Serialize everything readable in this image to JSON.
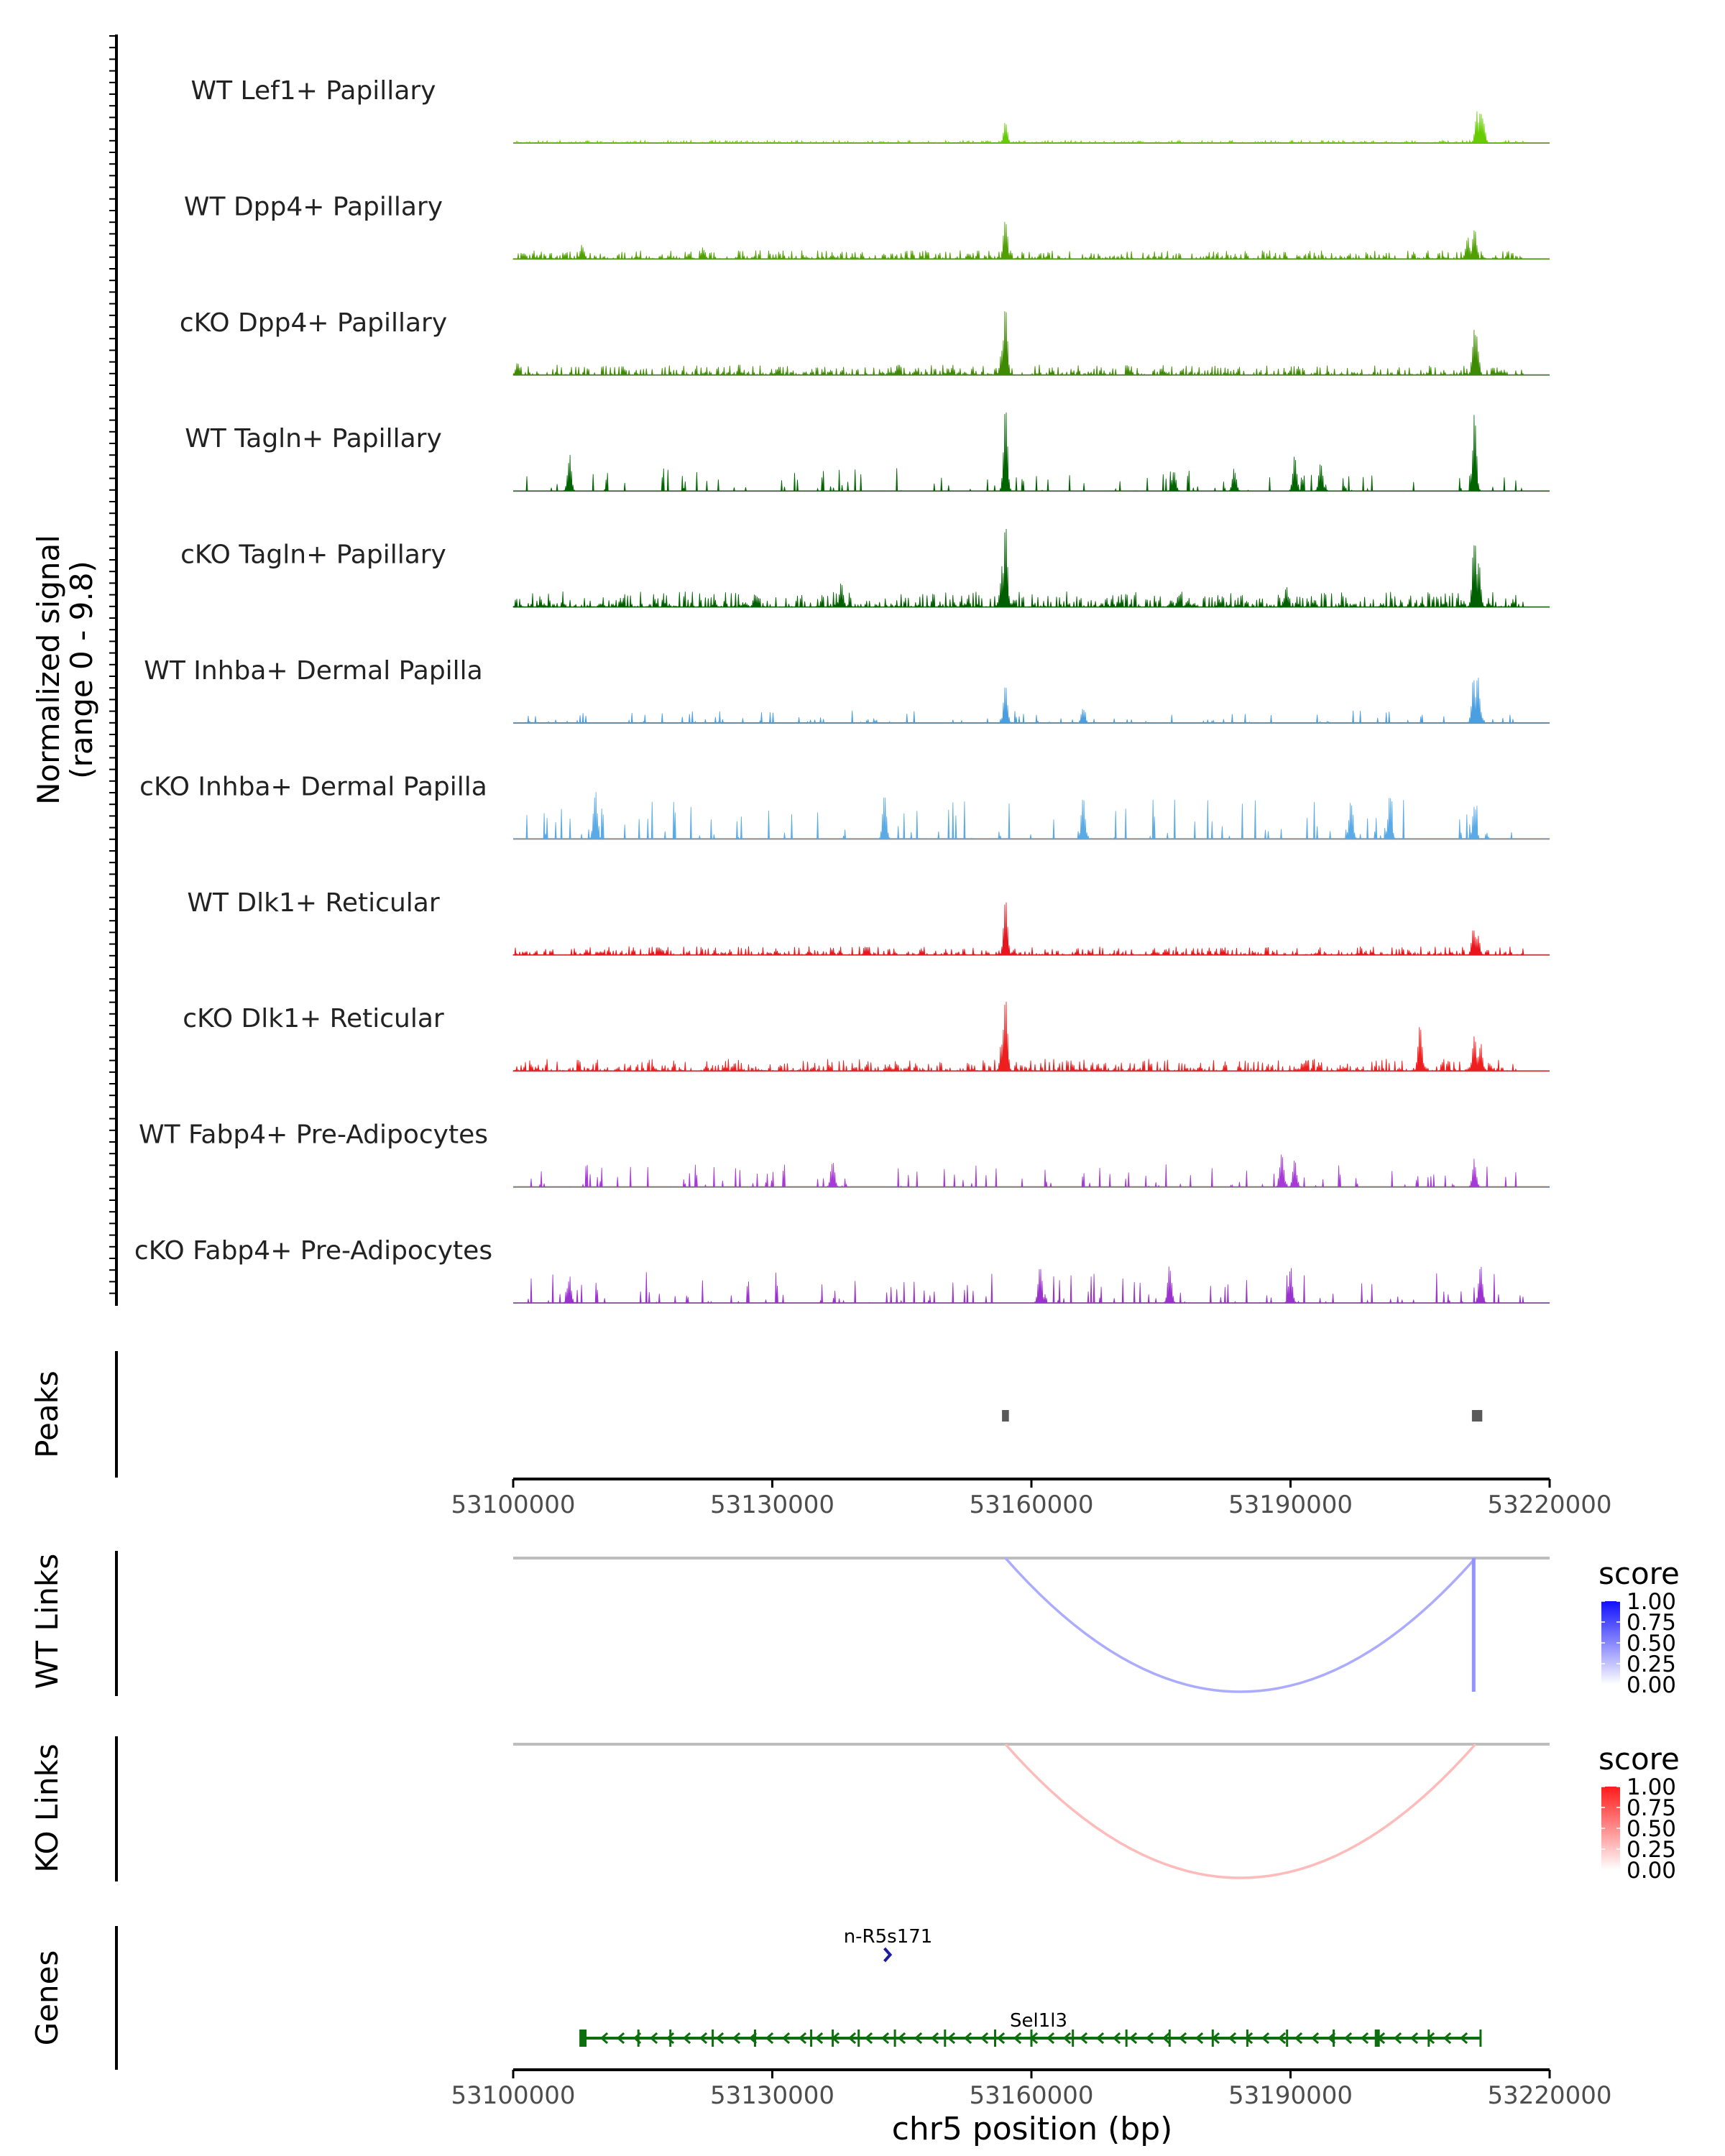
{
  "chart_data": {
    "type": "area",
    "title": "",
    "ylabel_lines": [
      "Normalized signal",
      "(range 0 - 9.8)"
    ],
    "y_range": [
      0,
      9.8
    ],
    "xlabel": "chr5 position (bp)",
    "x_range": [
      53100000,
      53220000
    ],
    "x_ticks": [
      53100000,
      53130000,
      53160000,
      53190000,
      53220000
    ],
    "x_tick_labels": [
      "53100000",
      "53130000",
      "53160000",
      "53190000",
      "53220000"
    ],
    "tracks": [
      {
        "name": "WT Lef1+ Papillary",
        "color": "#66cc00",
        "peaks": [
          [
            53157000,
            0.25
          ],
          [
            53211600,
            0.38
          ],
          [
            53212000,
            0.48
          ],
          [
            53212300,
            0.3
          ]
        ],
        "sparse": false,
        "noise": 0.03,
        "seed": 11
      },
      {
        "name": "WT Dpp4+ Papillary",
        "color": "#4fa000",
        "peaks": [
          [
            53157000,
            0.55
          ],
          [
            53210500,
            0.3
          ],
          [
            53211300,
            0.45
          ],
          [
            53108000,
            0.18
          ],
          [
            53122000,
            0.15
          ]
        ],
        "sparse": false,
        "noise": 0.1,
        "seed": 22
      },
      {
        "name": "cKO Dpp4+ Papillary",
        "color": "#3e8a00",
        "peaks": [
          [
            53157000,
            0.9
          ],
          [
            53156600,
            0.35
          ],
          [
            53211300,
            0.7
          ],
          [
            53211600,
            0.45
          ],
          [
            53100500,
            0.15
          ]
        ],
        "sparse": false,
        "noise": 0.12,
        "seed": 33
      },
      {
        "name": "WT Tagln+ Papillary",
        "color": "#006400",
        "peaks": [
          [
            53157000,
            1.0
          ],
          [
            53211300,
            0.95
          ],
          [
            53106500,
            0.45
          ],
          [
            53190500,
            0.45
          ],
          [
            53193500,
            0.35
          ],
          [
            53176500,
            0.25
          ],
          [
            53183500,
            0.28
          ]
        ],
        "sparse": true,
        "noise": 0.22,
        "seed": 44
      },
      {
        "name": "cKO Tagln+ Papillary",
        "color": "#006000",
        "peaks": [
          [
            53157000,
            1.0
          ],
          [
            53156600,
            0.5
          ],
          [
            53211300,
            0.95
          ],
          [
            53211800,
            0.55
          ],
          [
            53138000,
            0.35
          ],
          [
            53189500,
            0.25
          ]
        ],
        "sparse": false,
        "noise": 0.18,
        "seed": 55
      },
      {
        "name": "WT Inhba+ Dermal Papilla",
        "color": "#4a9fe0",
        "peaks": [
          [
            53157000,
            0.45
          ],
          [
            53211200,
            0.55
          ],
          [
            53211700,
            0.6
          ],
          [
            53166000,
            0.2
          ]
        ],
        "sparse": true,
        "noise": 0.12,
        "seed": 66
      },
      {
        "name": "cKO Inhba+ Dermal Papilla",
        "color": "#5aaae6",
        "peaks": [
          [
            53109500,
            0.6
          ],
          [
            53143000,
            0.55
          ],
          [
            53166000,
            0.55
          ],
          [
            53197000,
            0.55
          ],
          [
            53201500,
            0.55
          ],
          [
            53211300,
            0.45
          ]
        ],
        "sparse": true,
        "noise": 0.38,
        "seed": 77
      },
      {
        "name": "WT Dlk1+ Reticular",
        "color": "#e8161c",
        "peaks": [
          [
            53157000,
            0.7
          ],
          [
            53211200,
            0.35
          ],
          [
            53211700,
            0.25
          ]
        ],
        "sparse": false,
        "noise": 0.1,
        "seed": 88
      },
      {
        "name": "cKO Dlk1+ Reticular",
        "color": "#ee1f1f",
        "peaks": [
          [
            53157000,
            1.0
          ],
          [
            53156600,
            0.4
          ],
          [
            53205000,
            0.6
          ],
          [
            53211300,
            0.45
          ],
          [
            53212000,
            0.35
          ]
        ],
        "sparse": false,
        "noise": 0.14,
        "seed": 99
      },
      {
        "name": "WT Fabp4+ Pre-Adipocytes",
        "color": "#a63ad6",
        "peaks": [
          [
            53137000,
            0.35
          ],
          [
            53189000,
            0.45
          ],
          [
            53190500,
            0.35
          ],
          [
            53211300,
            0.35
          ]
        ],
        "sparse": true,
        "noise": 0.22,
        "seed": 111
      },
      {
        "name": "cKO Fabp4+ Pre-Adipocytes",
        "color": "#9b32cf",
        "peaks": [
          [
            53106500,
            0.35
          ],
          [
            53161000,
            0.5
          ],
          [
            53176000,
            0.5
          ],
          [
            53190000,
            0.45
          ],
          [
            53212000,
            0.5
          ]
        ],
        "sparse": true,
        "noise": 0.3,
        "seed": 122
      }
    ],
    "peaks_track": {
      "label": "Peaks",
      "color": "#5a5a5a",
      "regions": [
        [
          53156600,
          53157400
        ],
        [
          53211000,
          53212200
        ]
      ]
    },
    "link_tracks": [
      {
        "label": "WT Links",
        "color_high": "#1010ff",
        "color_low": "#ffffff",
        "legend_title": "score",
        "legend_ticks": [
          "1.00",
          "0.75",
          "0.50",
          "0.25",
          "0.00"
        ],
        "links": [
          {
            "start": 53157000,
            "end": 53211400,
            "score": 0.35
          },
          {
            "start": 53211200,
            "end": 53211600,
            "score": 0.45
          }
        ]
      },
      {
        "label": "KO Links",
        "color_high": "#ff1a1a",
        "color_low": "#ffffff",
        "legend_title": "score",
        "legend_ticks": [
          "1.00",
          "0.75",
          "0.50",
          "0.25",
          "0.00"
        ],
        "links": [
          {
            "start": 53157000,
            "end": 53211400,
            "score": 0.3
          }
        ]
      }
    ],
    "genes_track": {
      "label": "Genes",
      "genes": [
        {
          "name": "n-R5s171",
          "start": 53143300,
          "end": 53143500,
          "strand": "+",
          "color": "#1a1a9e",
          "row": 0
        },
        {
          "name": "Sel1l3",
          "start": 53108000,
          "end": 53212000,
          "strand": "-",
          "color": "#0d6e0d",
          "row": 1,
          "exons": [
            53108000,
            53114500,
            53118200,
            53123100,
            53128000,
            53134500,
            53137000,
            53140000,
            53144200,
            53150000,
            53155800,
            53160000,
            53164800,
            53171000,
            53176000,
            53181000,
            53185000,
            53189600,
            53195000,
            53200100,
            53206000,
            53212000
          ]
        }
      ]
    }
  }
}
